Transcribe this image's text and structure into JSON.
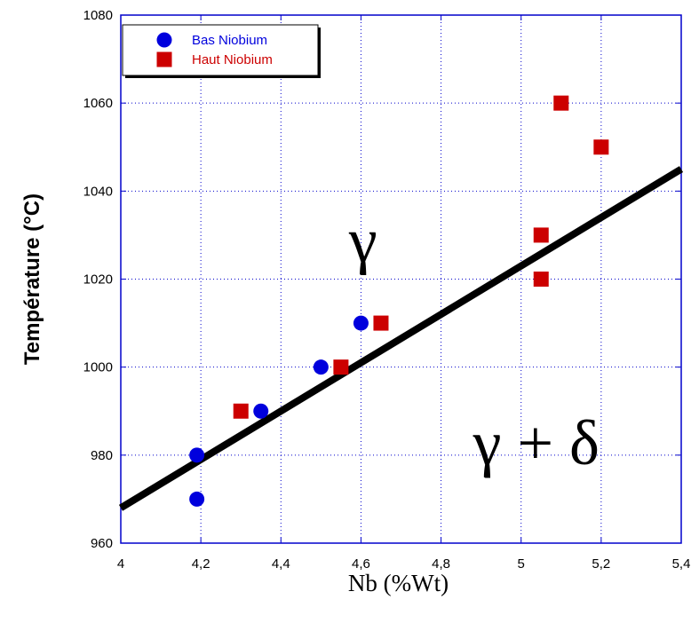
{
  "chart_data": {
    "type": "scatter",
    "xlabel": "Nb (%Wt)",
    "ylabel": "Température (°C)",
    "xlim": [
      4,
      5.4
    ],
    "ylim": [
      960,
      1080
    ],
    "x_ticks": [
      "4",
      "4,2",
      "4,4",
      "4,6",
      "4,8",
      "5",
      "5,2",
      "5,4"
    ],
    "y_ticks": [
      "960",
      "980",
      "1000",
      "1020",
      "1040",
      "1060",
      "1080"
    ],
    "grid": true,
    "legend_position": "top-left",
    "series": [
      {
        "name": "Bas Niobium",
        "marker": "circle",
        "color": "#0000dd",
        "points": [
          [
            4.19,
            980
          ],
          [
            4.19,
            970
          ],
          [
            4.35,
            990
          ],
          [
            4.5,
            1000
          ],
          [
            4.6,
            1010
          ]
        ]
      },
      {
        "name": "Haut Niobium",
        "marker": "square",
        "color": "#cc0000",
        "points": [
          [
            4.3,
            990
          ],
          [
            4.55,
            1000
          ],
          [
            4.65,
            1010
          ],
          [
            5.05,
            1030
          ],
          [
            5.05,
            1020
          ],
          [
            5.1,
            1060
          ],
          [
            5.2,
            1050
          ]
        ]
      }
    ],
    "fit_line": {
      "x": [
        4,
        5.4
      ],
      "y": [
        968,
        1045
      ],
      "color": "#000000"
    },
    "annotations": [
      {
        "text": "γ",
        "x": 4.57,
        "y": 1024
      },
      {
        "text": "γ + δ",
        "x": 4.88,
        "y": 978
      }
    ]
  }
}
